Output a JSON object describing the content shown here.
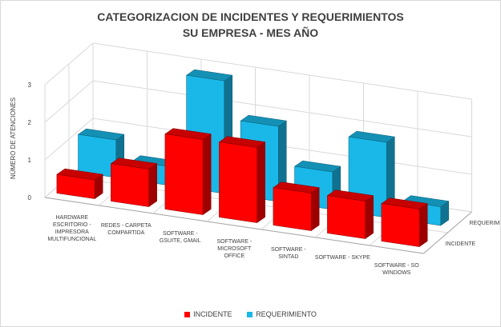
{
  "title_line1": "CATEGORIZACION DE INCIDENTES Y REQUERIMIENTOS",
  "title_line2": "SU EMPRESA - MES AÑO",
  "colors": {
    "incidente": "#ff0000",
    "requerimiento": "#19b8e8"
  },
  "chart_data": {
    "type": "bar",
    "title": "CATEGORIZACION DE INCIDENTES Y REQUERIMIENTOS SU EMPRESA - MES AÑO",
    "ylabel": "NÚMERO DE ATENCIONES",
    "ylim": [
      0,
      3
    ],
    "yticks": [
      0,
      1,
      2,
      3
    ],
    "categories": [
      "HARDWARE ESCRITORIO - IMPRESORA MULTIFUNCIONAL",
      "REDES - CARPETA COMPARTIDA",
      "SOFTWARE - GSUITE, GMAIL",
      "SOFTWARE - MICROSOFT OFFICE",
      "SOFTWARE - SINTAD",
      "SOFTWARE - SKYPE",
      "SOFTWARE - SO WINDOWS"
    ],
    "category_lines": [
      [
        "HARDWARE",
        "ESCRITORIO -",
        "IMPRESORA",
        "MULTIFUNCIONAL"
      ],
      [
        "REDES - CARPETA",
        "COMPARTIDA"
      ],
      [
        "SOFTWARE -",
        "GSUITE, GMAIL"
      ],
      [
        "SOFTWARE -",
        "MICROSOFT",
        "OFFICE"
      ],
      [
        "SOFTWARE -",
        "SINTAD"
      ],
      [
        "SOFTWARE - SKYPE"
      ],
      [
        "SOFTWARE - SO",
        "WINDOWS"
      ]
    ],
    "series": [
      {
        "name": "INCIDENTE",
        "values": [
          0,
          1,
          2,
          2,
          1,
          1,
          1
        ]
      },
      {
        "name": "REQUERIMIENTO",
        "values": [
          1,
          0,
          3,
          2,
          1,
          2,
          0
        ]
      }
    ],
    "depth_labels": [
      "INCIDENTE",
      "REQUERIMIENTO"
    ],
    "legend": {
      "position": "bottom",
      "items": [
        "INCIDENTE",
        "REQUERIMIENTO"
      ]
    },
    "grid": true
  }
}
